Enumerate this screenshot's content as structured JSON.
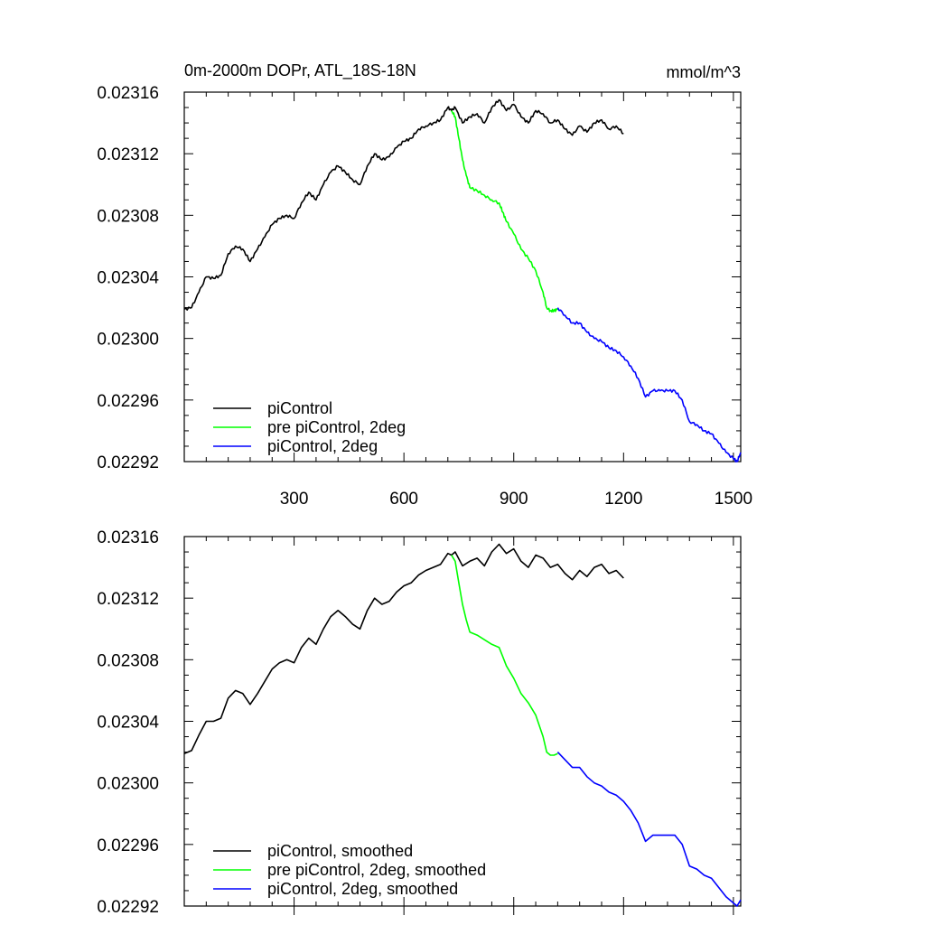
{
  "colors": {
    "black": "#000000",
    "green": "#00ff00",
    "blue": "#0000ff",
    "background": "#ffffff"
  },
  "chart_data": [
    {
      "type": "line",
      "panel": "top",
      "title": "0m-2000m DOPr, ATL_18S-18N",
      "units": "mmol/m^3",
      "xlim": [
        0,
        1520
      ],
      "ylim": [
        0.02292,
        0.02316
      ],
      "x_ticks": [
        300,
        600,
        900,
        1200,
        1500
      ],
      "x_tick_labels": [
        "300",
        "600",
        "900",
        "1200",
        "1500"
      ],
      "y_ticks": [
        0.02292,
        0.02296,
        0.023,
        0.02304,
        0.02308,
        0.02312,
        0.02316
      ],
      "y_tick_labels": [
        "0.02292",
        "0.02296",
        "0.02300",
        "0.02304",
        "0.02308",
        "0.02312",
        "0.02316"
      ],
      "legend": "bottom-left",
      "series": [
        {
          "name": "piControl",
          "color": "#000000",
          "x": [
            0,
            20,
            40,
            60,
            80,
            100,
            120,
            140,
            160,
            180,
            200,
            220,
            240,
            260,
            280,
            300,
            320,
            340,
            360,
            380,
            400,
            420,
            440,
            460,
            480,
            500,
            520,
            540,
            560,
            580,
            600,
            620,
            640,
            660,
            680,
            700,
            720,
            730,
            740,
            760,
            780,
            800,
            820,
            840,
            860,
            880,
            900,
            920,
            940,
            960,
            980,
            1000,
            1020,
            1040,
            1060,
            1080,
            1100,
            1120,
            1140,
            1160,
            1180,
            1200
          ],
          "values": [
            0.023019,
            0.02302,
            0.02303,
            0.02304,
            0.023039,
            0.023041,
            0.023055,
            0.02306,
            0.023058,
            0.02305,
            0.023058,
            0.023066,
            0.023074,
            0.023078,
            0.02308,
            0.023078,
            0.023088,
            0.023095,
            0.02309,
            0.0231,
            0.023108,
            0.023112,
            0.023108,
            0.023103,
            0.0231,
            0.023112,
            0.02312,
            0.023116,
            0.023118,
            0.023124,
            0.023128,
            0.02313,
            0.023136,
            0.023138,
            0.02314,
            0.023142,
            0.02315,
            0.023148,
            0.02315,
            0.02314,
            0.023144,
            0.023146,
            0.02314,
            0.02315,
            0.023155,
            0.023148,
            0.023152,
            0.023144,
            0.02314,
            0.023148,
            0.023146,
            0.02314,
            0.023142,
            0.023136,
            0.023132,
            0.023138,
            0.023134,
            0.02314,
            0.023142,
            0.023136,
            0.023138,
            0.023133
          ]
        },
        {
          "name": "pre piControl, 2deg",
          "color": "#00ff00",
          "x": [
            730,
            740,
            750,
            760,
            770,
            780,
            800,
            820,
            840,
            860,
            870,
            880,
            900,
            920,
            940,
            960,
            980,
            990,
            1000,
            1010,
            1020
          ],
          "values": [
            0.023148,
            0.023144,
            0.02313,
            0.023116,
            0.023106,
            0.023098,
            0.023096,
            0.023093,
            0.02309,
            0.023088,
            0.023082,
            0.023076,
            0.023068,
            0.023058,
            0.023052,
            0.023044,
            0.02303,
            0.02302,
            0.023018,
            0.023018,
            0.023019
          ]
        },
        {
          "name": "piControl, 2deg",
          "color": "#0000ff",
          "x": [
            1020,
            1040,
            1060,
            1080,
            1100,
            1120,
            1140,
            1160,
            1180,
            1200,
            1220,
            1240,
            1260,
            1280,
            1300,
            1320,
            1340,
            1360,
            1380,
            1400,
            1420,
            1440,
            1460,
            1480,
            1500,
            1510,
            1520
          ],
          "values": [
            0.02302,
            0.023015,
            0.02301,
            0.02301,
            0.023004,
            0.023,
            0.022998,
            0.022994,
            0.022992,
            0.022988,
            0.022982,
            0.022974,
            0.022962,
            0.022966,
            0.022966,
            0.022966,
            0.022966,
            0.02296,
            0.022946,
            0.022944,
            0.02294,
            0.022938,
            0.022932,
            0.022926,
            0.022922,
            0.02292,
            0.022926
          ]
        }
      ]
    },
    {
      "type": "line",
      "panel": "bottom",
      "xlim": [
        0,
        1520
      ],
      "ylim": [
        0.02292,
        0.02316
      ],
      "x_ticks": [
        300,
        600,
        900,
        1200,
        1500
      ],
      "y_ticks": [
        0.02292,
        0.02296,
        0.023,
        0.02304,
        0.02308,
        0.02312,
        0.02316
      ],
      "y_tick_labels": [
        "0.02292",
        "0.02296",
        "0.02300",
        "0.02304",
        "0.02308",
        "0.02312",
        "0.02316"
      ],
      "legend": "bottom-left",
      "series": [
        {
          "name": "piControl, smoothed",
          "color": "#000000",
          "x": [
            0,
            20,
            40,
            60,
            80,
            100,
            120,
            140,
            160,
            180,
            200,
            220,
            240,
            260,
            280,
            300,
            320,
            340,
            360,
            380,
            400,
            420,
            440,
            460,
            480,
            500,
            520,
            540,
            560,
            580,
            600,
            620,
            640,
            660,
            680,
            700,
            720,
            730,
            740,
            760,
            780,
            800,
            820,
            840,
            860,
            880,
            900,
            920,
            940,
            960,
            980,
            1000,
            1020,
            1040,
            1060,
            1080,
            1100,
            1120,
            1140,
            1160,
            1180,
            1200
          ],
          "values": [
            0.023019,
            0.023021,
            0.023031,
            0.02304,
            0.02304,
            0.023042,
            0.023055,
            0.02306,
            0.023058,
            0.023051,
            0.023058,
            0.023066,
            0.023074,
            0.023078,
            0.02308,
            0.023078,
            0.023088,
            0.023094,
            0.02309,
            0.0231,
            0.023108,
            0.023112,
            0.023108,
            0.023103,
            0.0231,
            0.023112,
            0.02312,
            0.023116,
            0.023118,
            0.023124,
            0.023128,
            0.02313,
            0.023135,
            0.023138,
            0.02314,
            0.023142,
            0.023149,
            0.023148,
            0.02315,
            0.023141,
            0.023144,
            0.023146,
            0.023141,
            0.02315,
            0.023155,
            0.023149,
            0.023152,
            0.023144,
            0.02314,
            0.023148,
            0.023146,
            0.02314,
            0.023142,
            0.023136,
            0.023132,
            0.023138,
            0.023134,
            0.02314,
            0.023142,
            0.023136,
            0.023138,
            0.023133
          ]
        },
        {
          "name": "pre piControl, 2deg, smoothed",
          "color": "#00ff00",
          "x": [
            730,
            740,
            750,
            760,
            770,
            780,
            800,
            820,
            840,
            860,
            870,
            880,
            900,
            920,
            940,
            960,
            980,
            990,
            1000,
            1010,
            1020
          ],
          "values": [
            0.023148,
            0.023144,
            0.02313,
            0.023116,
            0.023106,
            0.023098,
            0.023096,
            0.023093,
            0.02309,
            0.023088,
            0.023082,
            0.023076,
            0.023068,
            0.023058,
            0.023052,
            0.023044,
            0.02303,
            0.02302,
            0.023018,
            0.023018,
            0.023019
          ]
        },
        {
          "name": "piControl, 2deg, smoothed",
          "color": "#0000ff",
          "x": [
            1020,
            1040,
            1060,
            1080,
            1100,
            1120,
            1140,
            1160,
            1180,
            1200,
            1220,
            1240,
            1260,
            1280,
            1300,
            1320,
            1340,
            1360,
            1380,
            1400,
            1420,
            1440,
            1460,
            1480,
            1500,
            1510,
            1520
          ],
          "values": [
            0.02302,
            0.023015,
            0.02301,
            0.02301,
            0.023004,
            0.023,
            0.022998,
            0.022994,
            0.022992,
            0.022988,
            0.022982,
            0.022974,
            0.022962,
            0.022966,
            0.022966,
            0.022966,
            0.022966,
            0.02296,
            0.022946,
            0.022944,
            0.02294,
            0.022938,
            0.022932,
            0.022926,
            0.022922,
            0.02292,
            0.022924
          ]
        }
      ]
    }
  ]
}
